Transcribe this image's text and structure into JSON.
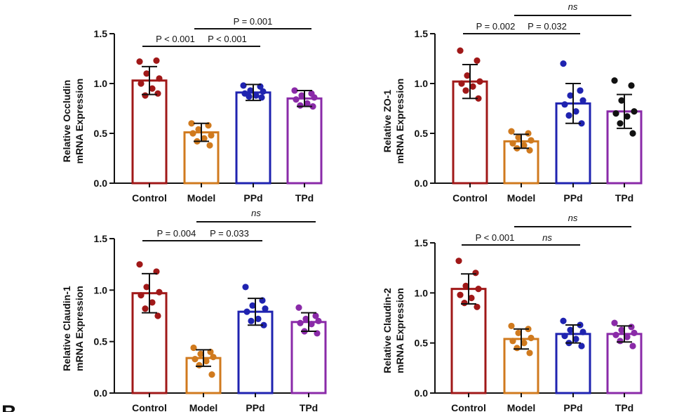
{
  "figure_letter": "B",
  "colors": {
    "control": "#a01818",
    "model": "#d07a1e",
    "ppd": "#1f23b0",
    "tpd": "#8a2aa8",
    "black": "#111111"
  },
  "chart_data": [
    {
      "id": "occludin",
      "type": "bar",
      "ylabel_line1": "Relative Occludin",
      "ylabel_line2": "mRNA Expression",
      "ylim": [
        0,
        1.5
      ],
      "yticks": [
        "0.0",
        "0.5",
        "1.0",
        "1.5"
      ],
      "categories": [
        "Control",
        "Model",
        "PPd",
        "TPd"
      ],
      "means": [
        1.03,
        0.51,
        0.91,
        0.85
      ],
      "sd": [
        0.14,
        0.09,
        0.08,
        0.08
      ],
      "points": [
        [
          1.22,
          1.23,
          1.1,
          1.05,
          1.0,
          0.95,
          0.88,
          0.9
        ],
        [
          0.6,
          0.58,
          0.54,
          0.48,
          0.5,
          0.45,
          0.42,
          0.38
        ],
        [
          0.98,
          0.97,
          0.93,
          0.92,
          0.9,
          0.88,
          0.87,
          0.86
        ],
        [
          0.93,
          0.9,
          0.88,
          0.86,
          0.84,
          0.8,
          0.78,
          0.77
        ]
      ],
      "point_colors": [
        "control",
        "model",
        "ppd",
        "tpd"
      ],
      "comparisons": [
        {
          "label": "P < 0.001",
          "from": 0,
          "to": 1,
          "level": 1
        },
        {
          "label": "P < 0.001",
          "from": 1,
          "to": 2,
          "level": 1
        },
        {
          "label": "P = 0.001",
          "from": 1,
          "to": 3,
          "level": 2
        }
      ]
    },
    {
      "id": "zo1",
      "type": "bar",
      "ylabel_line1": "Relative ZO-1",
      "ylabel_line2": "mRNA Expression",
      "ylim": [
        0,
        1.5
      ],
      "yticks": [
        "0.0",
        "0.5",
        "1.0",
        "1.5"
      ],
      "categories": [
        "Control",
        "Model",
        "PPd",
        "TPd"
      ],
      "means": [
        1.02,
        0.42,
        0.8,
        0.72
      ],
      "sd": [
        0.17,
        0.07,
        0.2,
        0.17
      ],
      "points": [
        [
          1.33,
          1.23,
          1.08,
          1.02,
          1.0,
          0.97,
          0.93,
          0.85
        ],
        [
          0.52,
          0.5,
          0.46,
          0.43,
          0.4,
          0.38,
          0.35,
          0.33
        ],
        [
          1.2,
          0.93,
          0.88,
          0.83,
          0.79,
          0.72,
          0.68,
          0.6
        ],
        [
          1.03,
          0.98,
          0.83,
          0.72,
          0.7,
          0.67,
          0.6,
          0.5
        ]
      ],
      "point_colors": [
        "control",
        "model",
        "ppd",
        "black"
      ],
      "comparisons": [
        {
          "label": "P = 0.002",
          "from": 0,
          "to": 1,
          "level": 1
        },
        {
          "label": "P = 0.032",
          "from": 1,
          "to": 2,
          "level": 1
        },
        {
          "label": "ns",
          "from": 1,
          "to": 3,
          "level": 2
        }
      ]
    },
    {
      "id": "claudin1",
      "type": "bar",
      "ylabel_line1": "Relative Claudin-1",
      "ylabel_line2": "mRNA Expression",
      "ylim": [
        0,
        1.5
      ],
      "yticks": [
        "0.0",
        "0.5",
        "1.0",
        "1.5"
      ],
      "categories": [
        "Control",
        "Model",
        "PPd",
        "TPd"
      ],
      "means": [
        0.97,
        0.34,
        0.79,
        0.69
      ],
      "sd": [
        0.19,
        0.08,
        0.13,
        0.09
      ],
      "points": [
        [
          1.25,
          1.18,
          1.03,
          0.98,
          0.95,
          0.88,
          0.82,
          0.75
        ],
        [
          0.44,
          0.4,
          0.38,
          0.35,
          0.33,
          0.31,
          0.27,
          0.18
        ],
        [
          1.03,
          0.9,
          0.85,
          0.82,
          0.79,
          0.72,
          0.7,
          0.66
        ],
        [
          0.83,
          0.75,
          0.72,
          0.7,
          0.68,
          0.67,
          0.6,
          0.58
        ]
      ],
      "point_colors": [
        "control",
        "model",
        "ppd",
        "tpd"
      ],
      "comparisons": [
        {
          "label": "P = 0.004",
          "from": 0,
          "to": 1,
          "level": 1
        },
        {
          "label": "P = 0.033",
          "from": 1,
          "to": 2,
          "level": 1
        },
        {
          "label": "ns",
          "from": 1,
          "to": 3,
          "level": 2
        }
      ]
    },
    {
      "id": "claudin2",
      "type": "bar",
      "ylabel_line1": "Relative Claudin-2",
      "ylabel_line2": "mRNA Expression",
      "ylim": [
        0,
        1.5
      ],
      "yticks": [
        "0.0",
        "0.5",
        "1.0",
        "1.5"
      ],
      "categories": [
        "Control",
        "Model",
        "PPd",
        "TPd"
      ],
      "means": [
        1.04,
        0.54,
        0.59,
        0.59
      ],
      "sd": [
        0.15,
        0.1,
        0.09,
        0.08
      ],
      "points": [
        [
          1.32,
          1.2,
          1.07,
          1.04,
          0.98,
          0.95,
          0.9,
          0.86
        ],
        [
          0.67,
          0.64,
          0.6,
          0.55,
          0.52,
          0.5,
          0.45,
          0.4
        ],
        [
          0.72,
          0.68,
          0.63,
          0.61,
          0.57,
          0.54,
          0.5,
          0.47
        ],
        [
          0.7,
          0.66,
          0.63,
          0.6,
          0.58,
          0.56,
          0.52,
          0.47
        ]
      ],
      "point_colors": [
        "control",
        "model",
        "ppd",
        "tpd"
      ],
      "comparisons": [
        {
          "label": "P < 0.001",
          "from": 0,
          "to": 1,
          "level": 1
        },
        {
          "label": "ns",
          "from": 1,
          "to": 2,
          "level": 1
        },
        {
          "label": "ns",
          "from": 1,
          "to": 3,
          "level": 2
        }
      ]
    }
  ]
}
